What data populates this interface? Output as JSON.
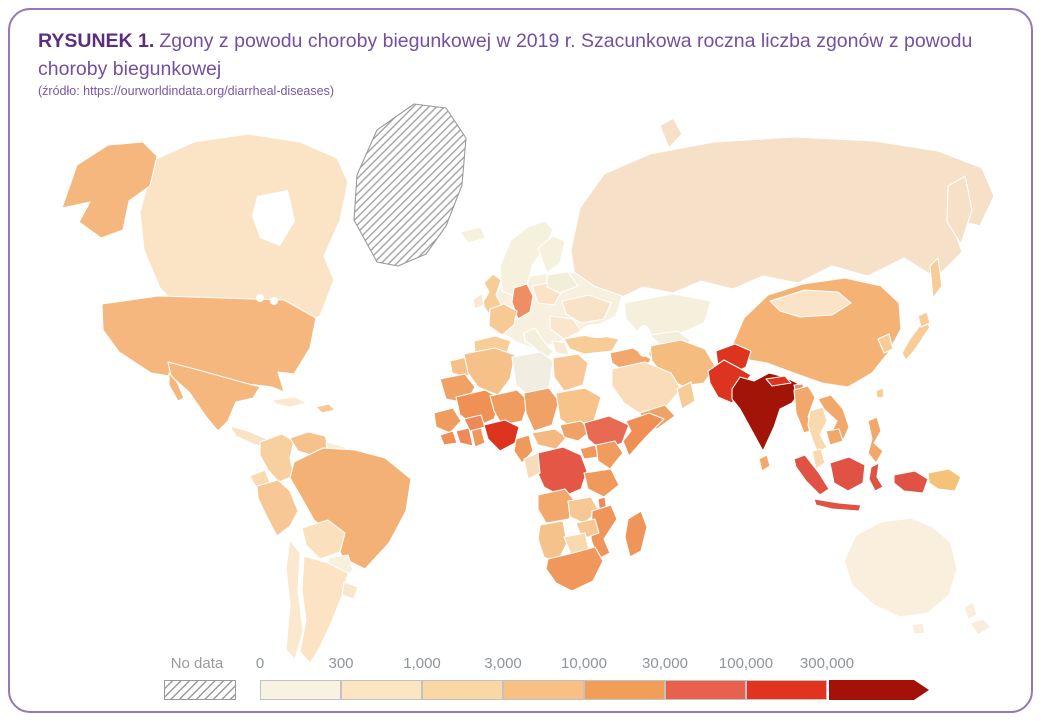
{
  "header": {
    "figure_label": "RYSUNEK 1.",
    "title": "Zgony z powodu choroby biegunkowej w 2019 r. Szacunkowa roczna liczba zgonów z powodu choroby biegunkowej",
    "source": "(źródło: https://ourworldindata.org/diarrheal-diseases)"
  },
  "colors": {
    "card_border": "#9678b4",
    "figure_label_text": "#5c2f7e",
    "title_text": "#7450a0",
    "source_text": "#7b55a6",
    "legend_text": "#8e959b",
    "country_border": "#ffffff",
    "no_data_hatch": "#9a9a9a"
  },
  "legend": {
    "no_data_label": "No data",
    "ticks": [
      "0",
      "300",
      "1,000",
      "3,000",
      "10,000",
      "30,000",
      "100,000",
      "300,000"
    ],
    "segment_colors": [
      "#f7f2e2",
      "#fce5c3",
      "#fbd7a3",
      "#f8c083",
      "#f09e58",
      "#e8614d",
      "#e03421",
      "#a31108"
    ]
  },
  "map": {
    "regions": [
      {
        "id": "greenland",
        "fill": "url(#hatch)"
      },
      {
        "id": "russia",
        "fill": "#f6e0c8"
      },
      {
        "id": "sakhalin",
        "fill": "#f8cc96"
      },
      {
        "id": "canada",
        "fill": "#fbe3c6"
      },
      {
        "id": "alaska",
        "fill": "#f5b77d"
      },
      {
        "id": "usa",
        "fill": "#f5b77d"
      },
      {
        "id": "mexico",
        "fill": "#f5b77d"
      },
      {
        "id": "central-america",
        "fill": "#f9e3c5"
      },
      {
        "id": "cuba",
        "fill": "#fbe8cf"
      },
      {
        "id": "hispaniola",
        "fill": "#f6c993"
      },
      {
        "id": "colombia",
        "fill": "#f8cf9f"
      },
      {
        "id": "venezuela",
        "fill": "#f6c28b"
      },
      {
        "id": "guyana",
        "fill": "#f6eed7"
      },
      {
        "id": "ecuador",
        "fill": "#f9d9ae"
      },
      {
        "id": "peru",
        "fill": "#f7c795"
      },
      {
        "id": "brazil",
        "fill": "#f4b175"
      },
      {
        "id": "bolivia",
        "fill": "#fbe0bd"
      },
      {
        "id": "paraguay",
        "fill": "#f8f0dc"
      },
      {
        "id": "chile",
        "fill": "#fae8cf"
      },
      {
        "id": "argentina",
        "fill": "#fbe3c4"
      },
      {
        "id": "uruguay",
        "fill": "#fae6cd"
      },
      {
        "id": "europe-base",
        "fill": "#f7f0de"
      },
      {
        "id": "iceland",
        "fill": "#f6f1dd"
      },
      {
        "id": "scandinavia",
        "fill": "#f6f1dd"
      },
      {
        "id": "finland",
        "fill": "#f6f1dd"
      },
      {
        "id": "uk",
        "fill": "#f8cc96"
      },
      {
        "id": "ireland",
        "fill": "#f9e9d2"
      },
      {
        "id": "germany",
        "fill": "#ef8e62"
      },
      {
        "id": "france",
        "fill": "#f7c994"
      },
      {
        "id": "spain",
        "fill": "#f8cd98"
      },
      {
        "id": "italy",
        "fill": "#f4efdb"
      },
      {
        "id": "poland",
        "fill": "#fbe3c8"
      },
      {
        "id": "baltics",
        "fill": "#f3eeda"
      },
      {
        "id": "ukraine",
        "fill": "#f8e3c9"
      },
      {
        "id": "balkans",
        "fill": "#fae6cd"
      },
      {
        "id": "greece",
        "fill": "#f9e9d2"
      },
      {
        "id": "kazakhstan",
        "fill": "#f5f0dc"
      },
      {
        "id": "uzbekistan",
        "fill": "#f3eeda"
      },
      {
        "id": "turkmenistan",
        "fill": "#f2c59a"
      },
      {
        "id": "turkey",
        "fill": "#f8cc96"
      },
      {
        "id": "iraq",
        "fill": "#f2a76b"
      },
      {
        "id": "iran",
        "fill": "#f5bc80"
      },
      {
        "id": "saudi-arabia",
        "fill": "#fbdcb8"
      },
      {
        "id": "yemen",
        "fill": "#f0a266"
      },
      {
        "id": "oman",
        "fill": "#f8cc96"
      },
      {
        "id": "china",
        "fill": "#f4b275"
      },
      {
        "id": "mongolia",
        "fill": "#fbe3c8"
      },
      {
        "id": "korea",
        "fill": "#f8cc96"
      },
      {
        "id": "japan",
        "fill": "#f8cc96"
      },
      {
        "id": "taiwan",
        "fill": "#f8cc96"
      },
      {
        "id": "afghanistan",
        "fill": "#dd3420"
      },
      {
        "id": "pakistan",
        "fill": "#dd3420"
      },
      {
        "id": "india",
        "fill": "#a31408"
      },
      {
        "id": "nepal",
        "fill": "#dd3420"
      },
      {
        "id": "bhutan",
        "fill": "#ee8a70"
      },
      {
        "id": "bangladesh",
        "fill": "#9e1b0e"
      },
      {
        "id": "sri-lanka",
        "fill": "#f2a76b"
      },
      {
        "id": "myanmar",
        "fill": "#f2a76b"
      },
      {
        "id": "thailand",
        "fill": "#f9d9ae"
      },
      {
        "id": "vietnam-laos",
        "fill": "#f2a76b"
      },
      {
        "id": "cambodia",
        "fill": "#f2a76b"
      },
      {
        "id": "malay-peninsula",
        "fill": "#f9d9ae"
      },
      {
        "id": "philippines",
        "fill": "#f2a76b"
      },
      {
        "id": "sumatra",
        "fill": "#df5244"
      },
      {
        "id": "java",
        "fill": "#df5244"
      },
      {
        "id": "borneo",
        "fill": "#df5244"
      },
      {
        "id": "sulawesi",
        "fill": "#df5244"
      },
      {
        "id": "west-papua",
        "fill": "#df5244"
      },
      {
        "id": "papua-new-guinea",
        "fill": "#f6c179"
      },
      {
        "id": "australia",
        "fill": "#faeedd"
      },
      {
        "id": "tasmania",
        "fill": "#faeedd"
      },
      {
        "id": "new-zealand",
        "fill": "#f9eedd"
      },
      {
        "id": "morocco",
        "fill": "#f6c089"
      },
      {
        "id": "algeria",
        "fill": "#f6c089"
      },
      {
        "id": "libya",
        "fill": "#f1ede1"
      },
      {
        "id": "egypt",
        "fill": "#f8c795"
      },
      {
        "id": "mauritania",
        "fill": "#f0a266"
      },
      {
        "id": "mali",
        "fill": "#ef9055"
      },
      {
        "id": "niger",
        "fill": "#f09c5e"
      },
      {
        "id": "chad",
        "fill": "#f0a266"
      },
      {
        "id": "sudan",
        "fill": "#f7c38b"
      },
      {
        "id": "senegal-guinea",
        "fill": "#f09c5e"
      },
      {
        "id": "sierra-leone-liberia",
        "fill": "#ef8f55"
      },
      {
        "id": "ivory-coast",
        "fill": "#ee8a5a"
      },
      {
        "id": "ghana",
        "fill": "#f0985c"
      },
      {
        "id": "burkina-faso",
        "fill": "#ee8a5a"
      },
      {
        "id": "nigeria",
        "fill": "#dd3420"
      },
      {
        "id": "cameroon",
        "fill": "#f0995c"
      },
      {
        "id": "central-african-republic",
        "fill": "#f4b880"
      },
      {
        "id": "south-sudan",
        "fill": "#f0a266"
      },
      {
        "id": "ethiopia",
        "fill": "#e96a52"
      },
      {
        "id": "somalia",
        "fill": "#ef8f55"
      },
      {
        "id": "uganda",
        "fill": "#f0995c"
      },
      {
        "id": "kenya",
        "fill": "#f09c5e"
      },
      {
        "id": "drc",
        "fill": "#e45747"
      },
      {
        "id": "congo-gabon",
        "fill": "#f6dcb8"
      },
      {
        "id": "tanzania",
        "fill": "#f0995c"
      },
      {
        "id": "angola",
        "fill": "#f2a76b"
      },
      {
        "id": "zambia",
        "fill": "#f7c795"
      },
      {
        "id": "malawi",
        "fill": "#ee8a5a"
      },
      {
        "id": "mozambique",
        "fill": "#ef9559"
      },
      {
        "id": "madagascar",
        "fill": "#ef9559"
      },
      {
        "id": "zimbabwe",
        "fill": "#f7c795"
      },
      {
        "id": "namibia",
        "fill": "#f6c28b"
      },
      {
        "id": "botswana",
        "fill": "#f9d9ae"
      },
      {
        "id": "south-africa",
        "fill": "#f0985c"
      }
    ]
  }
}
